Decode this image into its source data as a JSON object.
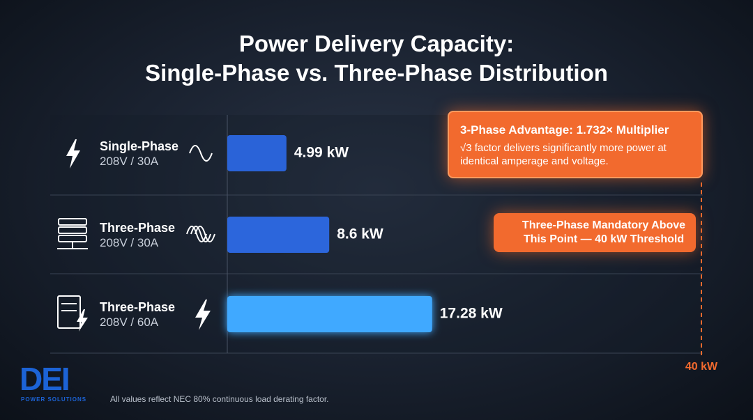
{
  "chart_data": {
    "type": "bar",
    "orientation": "horizontal",
    "title": "Power Delivery Capacity:",
    "subtitle": "Single-Phase vs. Three-Phase Distribution",
    "categories": [
      "Single-Phase",
      "Three-Phase",
      "Three-Phase"
    ],
    "category_sublabels": [
      "208V / 30A",
      "208V / 30A",
      "208V / 60A"
    ],
    "values": [
      4.99,
      8.6,
      17.28
    ],
    "value_labels": [
      "4.99 kW",
      "8.6 kW",
      "17.28 kW"
    ],
    "colors": [
      "#2a63d8",
      "#2c66dc",
      "#3fa9ff"
    ],
    "xlim": [
      0,
      42
    ],
    "threshold": {
      "value": 40,
      "label": "40 kW",
      "annotation": "Three-Phase Mandatory Above This Point — 40 kW Threshold",
      "color": "#f26a2e"
    },
    "callout": {
      "title": "3-Phase Advantage: 1.732× Multiplier",
      "text": "√3 factor delivers significantly more power at identical amperage and voltage."
    }
  },
  "footnote": "All values reflect NEC 80% continuous load derating factor.",
  "logo": {
    "text": "DEI",
    "subtext": "POWER SOLUTIONS"
  }
}
